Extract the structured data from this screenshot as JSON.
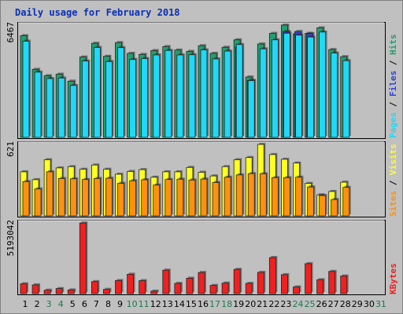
{
  "chart_data": {
    "type": "bar",
    "title": "Daily usage for February 2018",
    "x": [
      "1",
      "2",
      "3",
      "4",
      "5",
      "6",
      "7",
      "8",
      "9",
      "10",
      "11",
      "12",
      "13",
      "14",
      "15",
      "16",
      "17",
      "18",
      "19",
      "20",
      "21",
      "22",
      "23",
      "24",
      "25",
      "26",
      "27",
      "28",
      "29",
      "30",
      "31"
    ],
    "weekend_days": [
      "3",
      "4",
      "10",
      "11",
      "17",
      "18",
      "24",
      "25",
      "31"
    ],
    "colors": {
      "hits": "#20a070",
      "files": "#3040d8",
      "pages": "#20d8f8",
      "visits": "#ffff20",
      "sites": "#ff9010",
      "kbytes": "#f02020",
      "weekday_label": "#000000",
      "weekend_label": "#1a7a4a",
      "legend_sep": "#000000",
      "frame_bg": "#c0c0c0"
    },
    "panels": [
      {
        "name": "hits-files-pages",
        "max_label": "6467",
        "right_legend": [
          "Pages",
          "Files",
          "Hits"
        ],
        "right_legend_colors": [
          "#20d8f8",
          "#3040d8",
          "#20a070"
        ],
        "series": [
          {
            "name": "Hits",
            "values": [
              5860,
              3920,
              3550,
              3640,
              3240,
              4630,
              5420,
              4670,
              5460,
              4840,
              4780,
              5000,
              5230,
              5030,
              4950,
              5280,
              4840,
              5190,
              5620,
              3480,
              5380,
              5990,
              6470,
              5970,
              5990,
              6310,
              5060,
              4650,
              null,
              null,
              null
            ]
          },
          {
            "name": "Files",
            "values": [
              null,
              null,
              null,
              null,
              null,
              null,
              null,
              null,
              null,
              null,
              null,
              null,
              null,
              null,
              null,
              null,
              null,
              null,
              5200,
              3280,
              null,
              null,
              6100,
              6100,
              5980,
              null,
              null,
              null,
              null,
              null,
              null
            ]
          },
          {
            "name": "Pages",
            "values": [
              5540,
              3760,
              3390,
              3420,
              2990,
              4400,
              5180,
              4370,
              5170,
              4490,
              4540,
              4750,
              5010,
              4750,
              4760,
              5040,
              4520,
              4970,
              5350,
              3270,
              5100,
              5620,
              6000,
              5890,
              5780,
              6070,
              4860,
              4420,
              null,
              null,
              null
            ]
          }
        ]
      },
      {
        "name": "visits-sites",
        "max_label": "621",
        "right_legend": [
          "Sites",
          "Visits"
        ],
        "right_legend_colors": [
          "#ff9010",
          "#ffff20"
        ],
        "series": [
          {
            "name": "Visits",
            "values": [
              383,
              315,
              488,
              417,
              428,
              405,
              442,
              405,
              362,
              386,
              402,
              336,
              383,
              383,
              421,
              379,
              347,
              428,
              488,
              507,
              621,
              533,
              492,
              459,
              282,
              183,
              212,
              293,
              null,
              null,
              null
            ]
          },
          {
            "name": "Sites",
            "values": [
              298,
              234,
              383,
              325,
              322,
              316,
              325,
              327,
              283,
              305,
              314,
              268,
              316,
              319,
              312,
              320,
              290,
              336,
              356,
              367,
              366,
              332,
              332,
              336,
              251,
              177,
              142,
              248,
              null,
              null,
              null
            ]
          }
        ]
      },
      {
        "name": "kbytes",
        "max_label": "5193042",
        "right_legend": [
          "KBytes"
        ],
        "right_legend_colors": [
          "#f02020"
        ],
        "series": [
          {
            "name": "KBytes",
            "values": [
              720000,
              640000,
              250000,
              370000,
              270000,
              5190000,
              880000,
              310000,
              960000,
              1420000,
              950000,
              180000,
              1720000,
              750000,
              1130000,
              1550000,
              600000,
              770000,
              1780000,
              750000,
              1560000,
              2650000,
              1390000,
              490000,
              2200000,
              1020000,
              1630000,
              1290000,
              null,
              null,
              null
            ]
          }
        ]
      }
    ]
  }
}
